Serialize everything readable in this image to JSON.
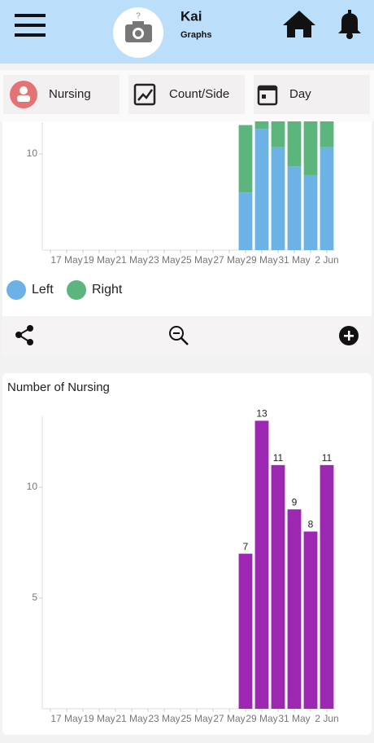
{
  "header": {
    "title": "Kai",
    "subtitle": "Graphs"
  },
  "tabs": [
    "Nursing",
    "Count/Side",
    "Day"
  ],
  "chart_data": [
    {
      "type": "bar",
      "stacked": true,
      "categories": [
        null,
        "17 May",
        null,
        "19 May",
        null,
        "21 May",
        null,
        "23 May",
        null,
        "25 May",
        null,
        "27 May",
        null,
        "29 May",
        null,
        "31 May",
        null,
        "2 Jun"
      ],
      "series": [
        {
          "name": "Left",
          "color": "#6cb2e4",
          "values": [
            null,
            null,
            null,
            null,
            null,
            null,
            null,
            null,
            null,
            null,
            null,
            null,
            6,
            12.6,
            10.7,
            8.7,
            7.8,
            10.7
          ]
        },
        {
          "name": "Right",
          "color": "#5db57e",
          "values": [
            null,
            null,
            null,
            null,
            null,
            null,
            null,
            null,
            null,
            null,
            null,
            null,
            7,
            1,
            3,
            5,
            6,
            3
          ]
        }
      ],
      "ylim": [
        0,
        13.3
      ],
      "yticks": [
        10
      ]
    },
    {
      "type": "bar",
      "title": "Number of Nursing",
      "categories": [
        null,
        "17 May",
        null,
        "19 May",
        null,
        "21 May",
        null,
        "23 May",
        null,
        "25 May",
        null,
        "27 May",
        null,
        "29 May",
        null,
        "31 May",
        null,
        "2 Jun"
      ],
      "values": [
        null,
        null,
        null,
        null,
        null,
        null,
        null,
        null,
        null,
        null,
        null,
        null,
        7,
        13,
        11,
        9,
        8,
        11
      ],
      "color": "#9c27b0",
      "ylim": [
        0,
        13.2
      ],
      "yticks": [
        5,
        10
      ]
    }
  ]
}
